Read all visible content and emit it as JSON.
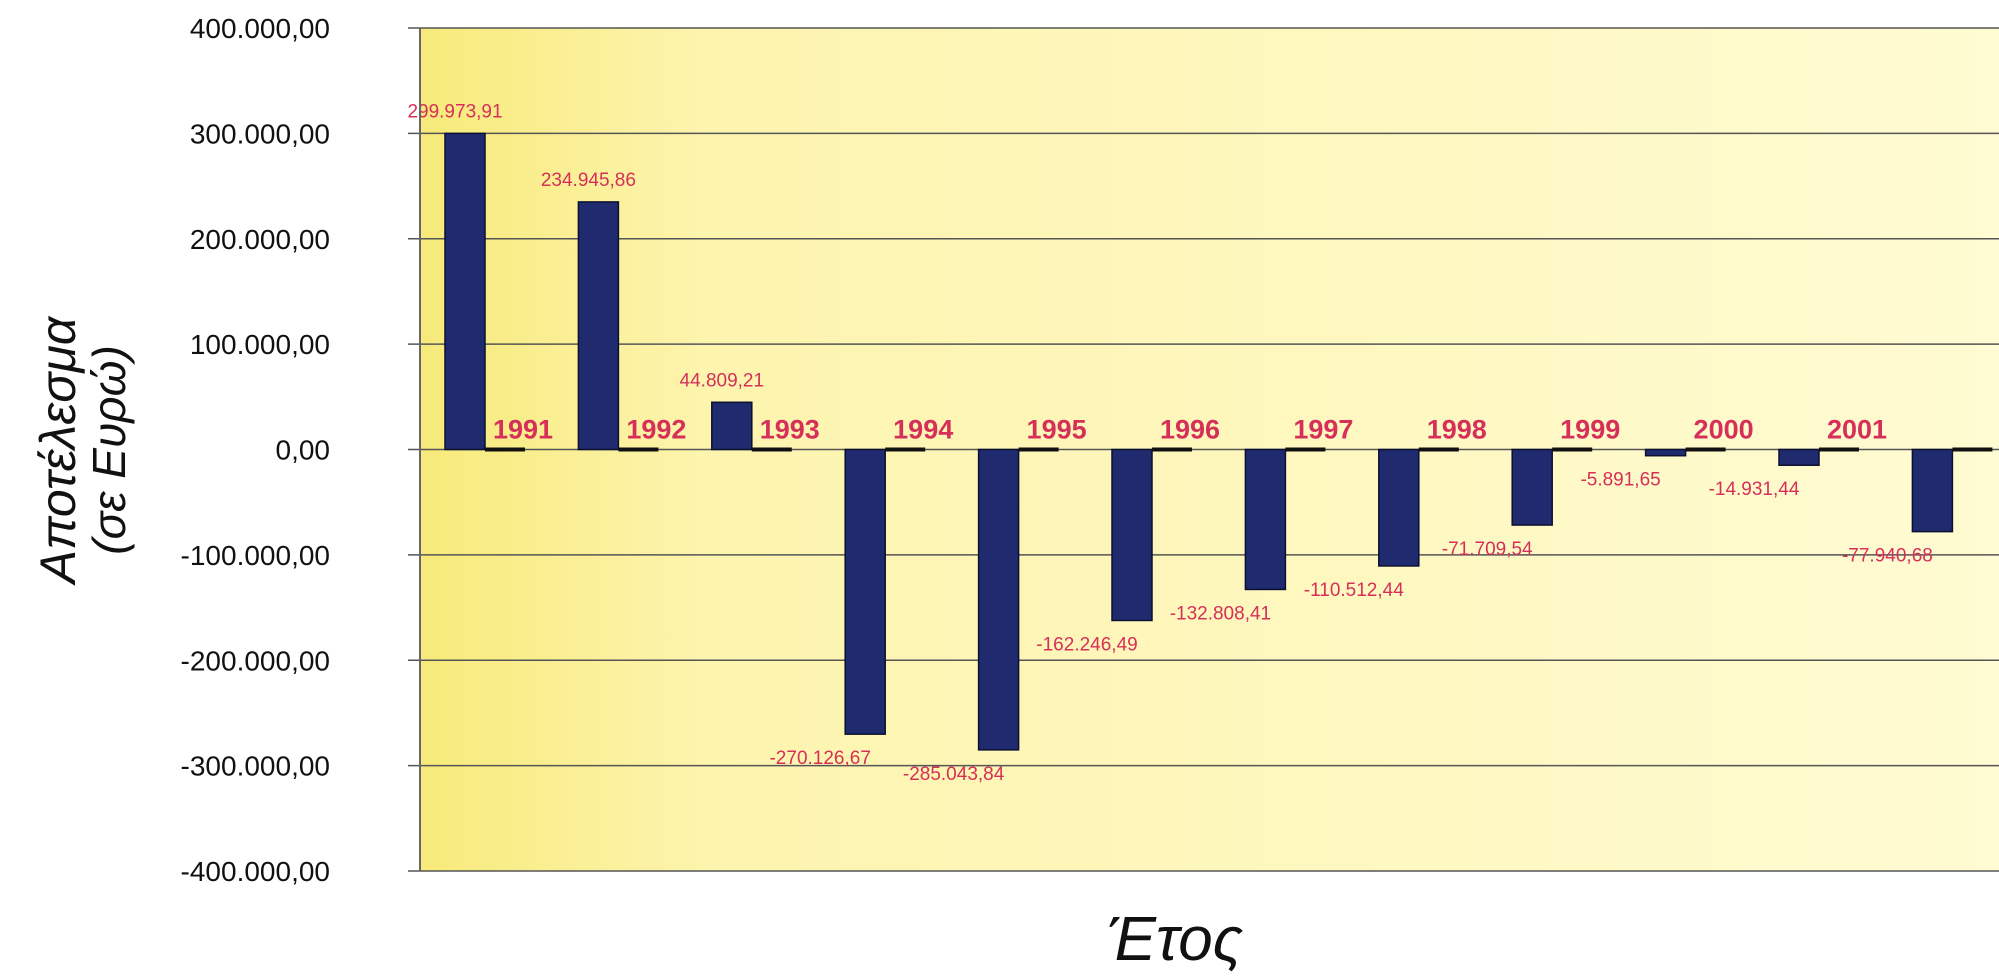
{
  "chart_data": {
    "type": "bar",
    "title": "",
    "xlabel": "Έτος",
    "ylabel_line1": "Αποτέλεσμα",
    "ylabel_line2": "(σε Ευρώ)",
    "ylim": [
      -400000,
      400000
    ],
    "y_ticks": [
      400000,
      300000,
      200000,
      100000,
      0,
      -100000,
      -200000,
      -300000,
      -400000
    ],
    "y_tick_labels": [
      "400.000,00",
      "300.000,00",
      "200.000,00",
      "100.000,00",
      "0,00",
      "-100.000,00",
      "-200.000,00",
      "-300.000,00",
      "-400.000,00"
    ],
    "grid": true,
    "categories": [
      "1991",
      "1992",
      "1993",
      "1994",
      "1995",
      "1996",
      "1997",
      "1998",
      "1999",
      "2000",
      "2001",
      ""
    ],
    "values": [
      299973.91,
      234945.86,
      44809.21,
      -270126.67,
      -285043.84,
      -162246.49,
      -132808.41,
      -110512.44,
      -71709.54,
      -5891.65,
      -14931.44,
      -77940.68
    ],
    "value_labels": [
      "299.973,91",
      "234.945,86",
      "44.809,21",
      "-270.126,67",
      "-285.043,84",
      "-162.246,49",
      "-132.808,41",
      "-110.512,44",
      "-71.709,54",
      "-5.891,65",
      "-14.931,44",
      "-77.940,68"
    ],
    "colors": {
      "bar": "#1f2b6e",
      "label": "#d6305a",
      "grid": "#555555",
      "plot_bg_left": "#f7ea7a",
      "plot_bg_right": "#fffbd2"
    }
  }
}
